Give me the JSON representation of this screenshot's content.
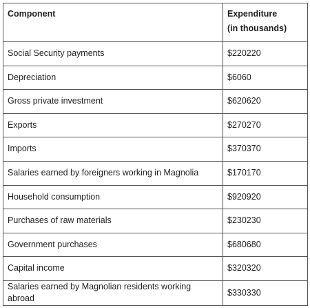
{
  "table": {
    "headers": {
      "component": "Component",
      "expenditure_line1": "Expenditure",
      "expenditure_line2": "(in thousands)"
    },
    "rows": [
      {
        "component": "Social Security payments",
        "expenditure": "$220220"
      },
      {
        "component": "Depreciation",
        "expenditure": "$6060"
      },
      {
        "component": "Gross private investment",
        "expenditure": "$620620"
      },
      {
        "component": "Exports",
        "expenditure": "$270270"
      },
      {
        "component": "Imports",
        "expenditure": "$370370"
      },
      {
        "component": "Salaries earned by foreigners working in Magnolia",
        "expenditure": "$170170"
      },
      {
        "component": "Household consumption",
        "expenditure": "$920920"
      },
      {
        "component": "Purchases of raw materials",
        "expenditure": "$230230"
      },
      {
        "component": "Government purchases",
        "expenditure": "$680680"
      },
      {
        "component": "Capital income",
        "expenditure": "$320320"
      },
      {
        "component": "Salaries earned by Magnolian residents working abroad",
        "expenditure": "$330330"
      }
    ]
  }
}
